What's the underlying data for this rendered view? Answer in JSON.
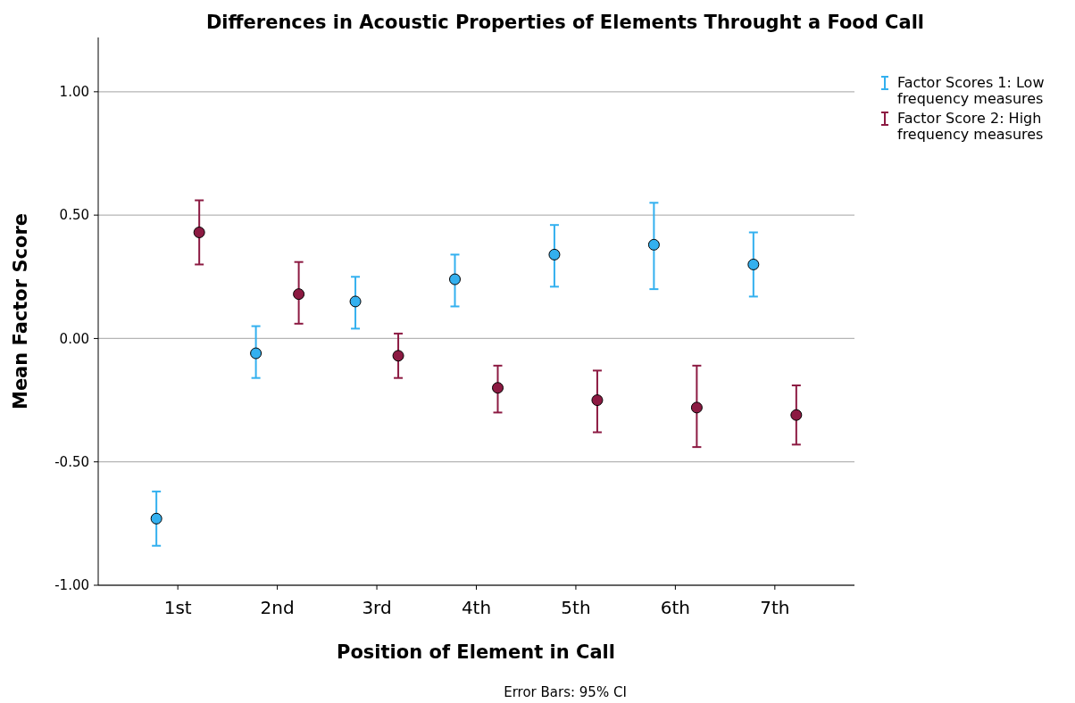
{
  "chart_data": {
    "type": "scatter",
    "title": "Differences in Acoustic Properties of Elements Throught a Food Call",
    "xlabel": "Position of Element in Call",
    "ylabel": "Mean Factor Score",
    "categories": [
      "1st",
      "2nd",
      "3rd",
      "4th",
      "5th",
      "6th",
      "7th"
    ],
    "series": [
      {
        "name": "Factor Scores 1: Low frequency measures",
        "color": "#33b0ef",
        "values": [
          -0.73,
          -0.06,
          0.15,
          0.24,
          0.34,
          0.38,
          0.3
        ],
        "errors": [
          [
            -0.84,
            -0.62
          ],
          [
            -0.16,
            0.05
          ],
          [
            0.04,
            0.25
          ],
          [
            0.13,
            0.34
          ],
          [
            0.21,
            0.46
          ],
          [
            0.2,
            0.55
          ],
          [
            0.17,
            0.43
          ]
        ]
      },
      {
        "name": "Factor Score 2: High frequency measures",
        "color": "#8c1a42",
        "values": [
          0.43,
          0.18,
          -0.07,
          -0.2,
          -0.25,
          -0.28,
          -0.31
        ],
        "errors": [
          [
            0.3,
            0.56
          ],
          [
            0.06,
            0.31
          ],
          [
            -0.16,
            0.02
          ],
          [
            -0.3,
            -0.11
          ],
          [
            -0.38,
            -0.13
          ],
          [
            -0.44,
            -0.11
          ],
          [
            -0.43,
            -0.19
          ]
        ]
      }
    ],
    "ylim": [
      -1,
      1.22
    ],
    "yticks": [
      {
        "value": -1,
        "label": "-1.00"
      },
      {
        "value": -0.5,
        "label": "-0.50"
      },
      {
        "value": 0,
        "label": "0.00"
      },
      {
        "value": 0.5,
        "label": "0.50"
      },
      {
        "value": 1,
        "label": "1.00"
      }
    ],
    "grid": "y",
    "legend": "top right",
    "marker": "circle",
    "annotations": [
      "Error Bars: 95% CI"
    ]
  }
}
